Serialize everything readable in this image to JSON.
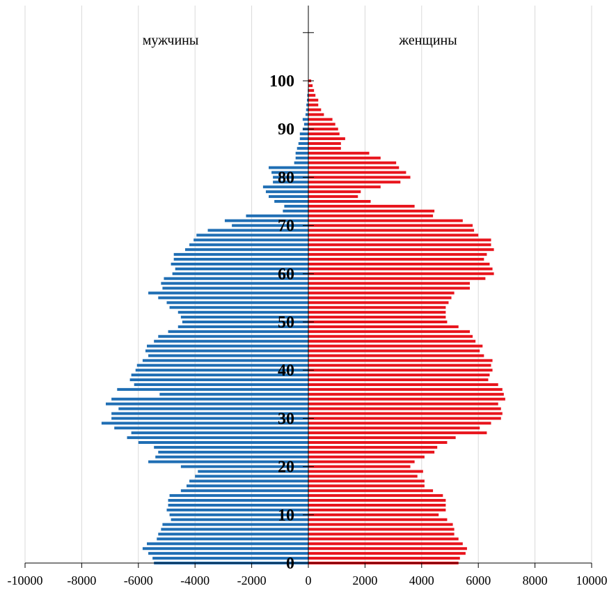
{
  "chart_data": {
    "type": "bar",
    "orientation": "horizontal",
    "layout": "population-pyramid",
    "xlim": [
      -10000,
      10000
    ],
    "x_ticks": [
      -10000,
      -8000,
      -6000,
      -4000,
      -2000,
      0,
      2000,
      4000,
      6000,
      8000,
      10000
    ],
    "x_tick_labels": [
      "-10000",
      "-8000",
      "-6000",
      "-4000",
      "-2000",
      "0",
      "2000",
      "4000",
      "6000",
      "8000",
      "10000"
    ],
    "age_ticks": [
      0,
      10,
      20,
      30,
      40,
      50,
      60,
      70,
      80,
      90,
      100
    ],
    "age_tick_labels": [
      "0",
      "10",
      "20",
      "30",
      "40",
      "50",
      "60",
      "70",
      "80",
      "90",
      "100"
    ],
    "grid": "vertical",
    "series": [
      {
        "name": "мужчины",
        "color": "#1f6eb4",
        "sign": -1,
        "ages": [
          0,
          1,
          2,
          3,
          4,
          5,
          6,
          7,
          8,
          9,
          10,
          11,
          12,
          13,
          14,
          15,
          16,
          17,
          18,
          19,
          20,
          21,
          22,
          23,
          24,
          25,
          26,
          27,
          28,
          29,
          30,
          31,
          32,
          33,
          34,
          35,
          36,
          37,
          38,
          39,
          40,
          41,
          42,
          43,
          44,
          45,
          46,
          47,
          48,
          49,
          50,
          51,
          52,
          53,
          54,
          55,
          56,
          57,
          58,
          59,
          60,
          61,
          62,
          63,
          64,
          65,
          66,
          67,
          68,
          69,
          70,
          71,
          72,
          73,
          74,
          75,
          76,
          77,
          78,
          79,
          80,
          81,
          82,
          83,
          84,
          85,
          86,
          87,
          88,
          89,
          90,
          91,
          92,
          93,
          94,
          95,
          96,
          97,
          98,
          99,
          100
        ],
        "values": [
          5450,
          5500,
          5650,
          5850,
          5700,
          5350,
          5300,
          5200,
          5150,
          4850,
          4900,
          5000,
          4950,
          4950,
          4900,
          4500,
          4300,
          4200,
          4000,
          3900,
          4500,
          5650,
          5400,
          5300,
          5450,
          6000,
          6400,
          6250,
          6850,
          7300,
          6950,
          6950,
          6700,
          7150,
          6950,
          5250,
          6750,
          6150,
          6300,
          6250,
          6100,
          6050,
          5850,
          5650,
          5750,
          5700,
          5450,
          5300,
          4950,
          4600,
          4450,
          4500,
          4600,
          4900,
          5000,
          5300,
          5650,
          5150,
          5200,
          5100,
          4800,
          4700,
          4850,
          4750,
          4750,
          4350,
          4200,
          4050,
          3950,
          3550,
          2700,
          2950,
          2200,
          900,
          850,
          1200,
          1400,
          1500,
          1600,
          1250,
          1250,
          1300,
          1400,
          500,
          450,
          450,
          400,
          350,
          300,
          300,
          200,
          150,
          200,
          100,
          80,
          70,
          50,
          40,
          20,
          10,
          5
        ]
      },
      {
        "name": "женщины",
        "color": "#e8141c",
        "sign": 1,
        "ages": [
          0,
          1,
          2,
          3,
          4,
          5,
          6,
          7,
          8,
          9,
          10,
          11,
          12,
          13,
          14,
          15,
          16,
          17,
          18,
          19,
          20,
          21,
          22,
          23,
          24,
          25,
          26,
          27,
          28,
          29,
          30,
          31,
          32,
          33,
          34,
          35,
          36,
          37,
          38,
          39,
          40,
          41,
          42,
          43,
          44,
          45,
          46,
          47,
          48,
          49,
          50,
          51,
          52,
          53,
          54,
          55,
          56,
          57,
          58,
          59,
          60,
          61,
          62,
          63,
          64,
          65,
          66,
          67,
          68,
          69,
          70,
          71,
          72,
          73,
          74,
          75,
          76,
          77,
          78,
          79,
          80,
          81,
          82,
          83,
          84,
          85,
          86,
          87,
          88,
          89,
          90,
          91,
          92,
          93,
          94,
          95,
          96,
          97,
          98,
          99,
          100
        ],
        "values": [
          5300,
          5350,
          5550,
          5600,
          5450,
          5300,
          5150,
          5150,
          5100,
          4900,
          4600,
          4850,
          4850,
          4850,
          4750,
          4400,
          4100,
          4100,
          3850,
          4050,
          3600,
          3750,
          4100,
          4450,
          4550,
          4900,
          5200,
          6300,
          6050,
          6450,
          6800,
          6850,
          6800,
          6700,
          6950,
          6900,
          6850,
          6700,
          6350,
          6400,
          6500,
          6450,
          6500,
          6200,
          6050,
          6150,
          5900,
          5800,
          5700,
          5300,
          4900,
          4850,
          4850,
          4850,
          4950,
          5050,
          5150,
          5700,
          5700,
          6250,
          6550,
          6500,
          6400,
          6200,
          6300,
          6550,
          6450,
          6450,
          6000,
          5850,
          5800,
          5450,
          4400,
          4450,
          3750,
          2200,
          1750,
          1850,
          2550,
          3250,
          3600,
          3450,
          3200,
          3100,
          2550,
          2150,
          1150,
          1150,
          1300,
          1100,
          1050,
          950,
          850,
          550,
          450,
          350,
          350,
          250,
          200,
          150,
          100
        ]
      }
    ],
    "group_labels": {
      "left": "мужчины",
      "right": "женщины"
    }
  }
}
